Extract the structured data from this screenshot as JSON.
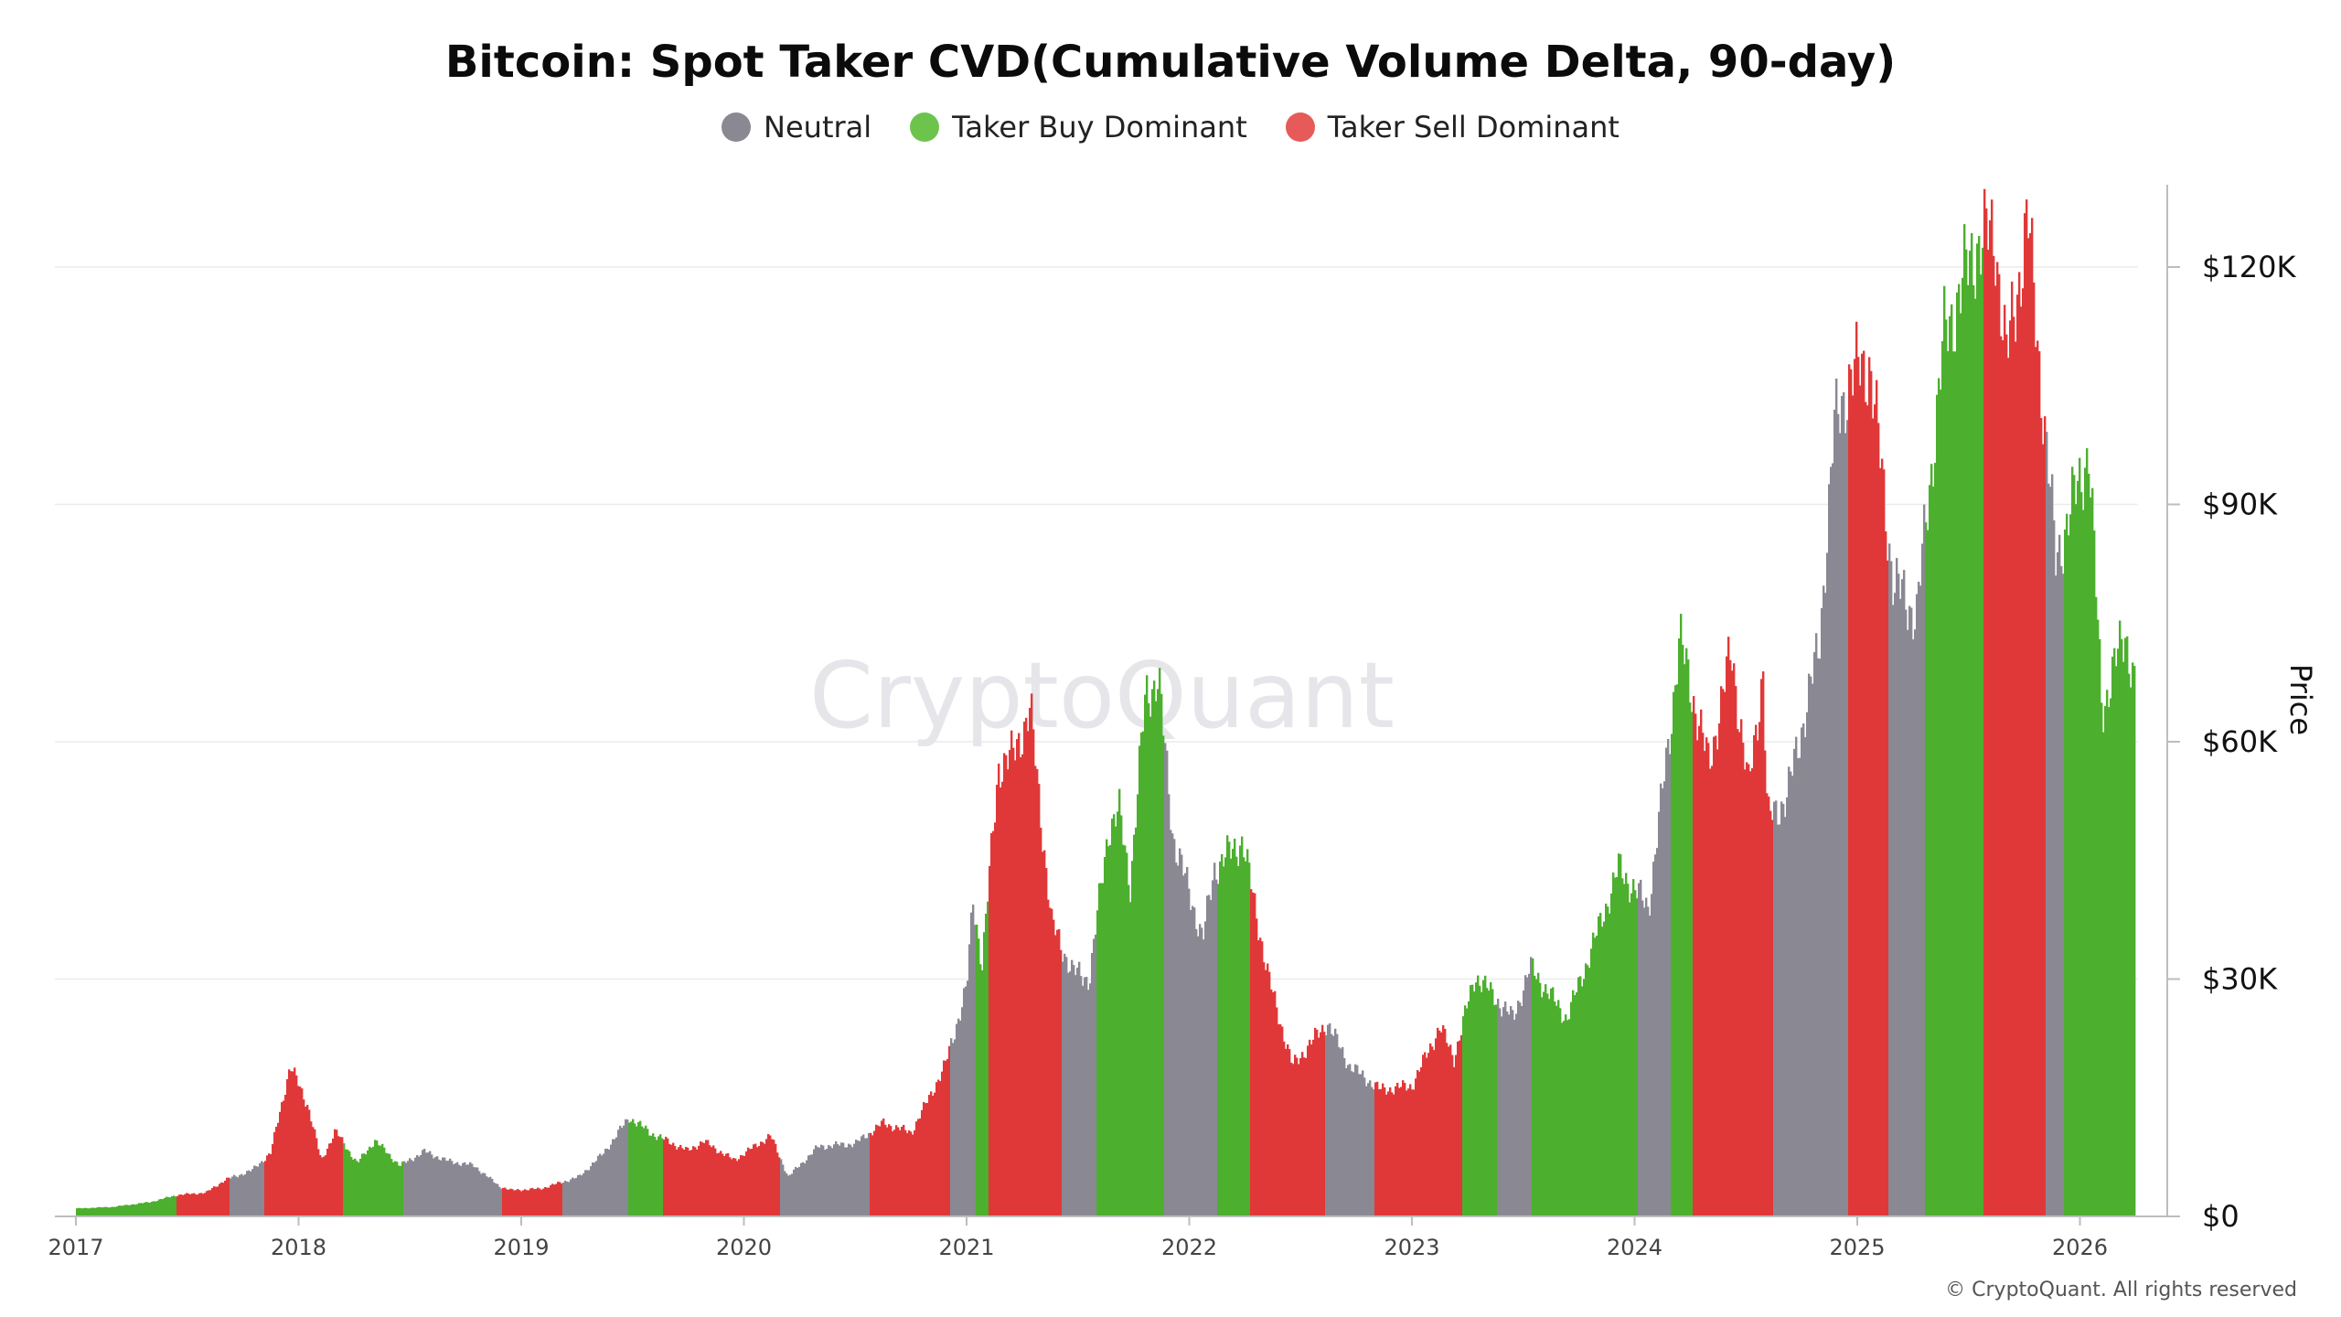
{
  "chart_data": {
    "type": "bar",
    "title": "Bitcoin: Spot Taker CVD(Cumulative Volume Delta, 90-day)",
    "ylabel": "Price",
    "ylim": [
      0,
      130000
    ],
    "y_ticks": [
      "$0",
      "$30K",
      "$60K",
      "$90K",
      "$120K"
    ],
    "y_tick_values": [
      0,
      30000,
      60000,
      90000,
      120000
    ],
    "x_ticks": [
      "2017",
      "2018",
      "2019",
      "2020",
      "2021",
      "2022",
      "2023",
      "2024",
      "2025",
      "2026"
    ],
    "x_range": [
      "2017-01-01",
      "2026-04-01"
    ],
    "grid": true,
    "legend_position": "top",
    "watermark": "CryptoQuant",
    "legend": [
      {
        "name": "Neutral",
        "color": "#8a8893"
      },
      {
        "name": "Taker Buy Dominant",
        "color": "#4caf2e"
      },
      {
        "name": "Taker Sell Dominant",
        "color": "#e03838"
      }
    ],
    "price_points": [
      [
        "2017-01-01",
        1000
      ],
      [
        "2017-03-01",
        1200
      ],
      [
        "2017-05-01",
        1800
      ],
      [
        "2017-06-15",
        2700
      ],
      [
        "2017-08-01",
        3000
      ],
      [
        "2017-09-01",
        4600
      ],
      [
        "2017-10-15",
        5800
      ],
      [
        "2017-11-15",
        8000
      ],
      [
        "2017-12-17",
        19000
      ],
      [
        "2018-01-15",
        14000
      ],
      [
        "2018-02-06",
        7000
      ],
      [
        "2018-03-01",
        10800
      ],
      [
        "2018-04-06",
        6700
      ],
      [
        "2018-05-05",
        9600
      ],
      [
        "2018-06-15",
        6400
      ],
      [
        "2018-07-25",
        8200
      ],
      [
        "2018-09-01",
        7000
      ],
      [
        "2018-10-15",
        6400
      ],
      [
        "2018-11-25",
        3800
      ],
      [
        "2018-12-15",
        3300
      ],
      [
        "2019-02-01",
        3500
      ],
      [
        "2019-04-05",
        5000
      ],
      [
        "2019-05-15",
        8000
      ],
      [
        "2019-06-26",
        12500
      ],
      [
        "2019-08-01",
        10500
      ],
      [
        "2019-09-30",
        8300
      ],
      [
        "2019-10-26",
        9500
      ],
      [
        "2019-12-15",
        7100
      ],
      [
        "2020-02-13",
        10200
      ],
      [
        "2020-03-13",
        5000
      ],
      [
        "2020-05-01",
        8800
      ],
      [
        "2020-07-01",
        9200
      ],
      [
        "2020-08-15",
        11800
      ],
      [
        "2020-10-01",
        10600
      ],
      [
        "2020-11-25",
        19000
      ],
      [
        "2020-12-31",
        29000
      ],
      [
        "2021-01-10",
        40000
      ],
      [
        "2021-01-25",
        32000
      ],
      [
        "2021-02-21",
        57000
      ],
      [
        "2021-03-15",
        58000
      ],
      [
        "2021-04-14",
        64000
      ],
      [
        "2021-05-19",
        37000
      ],
      [
        "2021-06-22",
        31000
      ],
      [
        "2021-07-20",
        30000
      ],
      [
        "2021-08-20",
        49000
      ],
      [
        "2021-09-07",
        51000
      ],
      [
        "2021-09-25",
        42000
      ],
      [
        "2021-10-20",
        66000
      ],
      [
        "2021-11-10",
        68000
      ],
      [
        "2021-12-04",
        48000
      ],
      [
        "2022-01-22",
        35000
      ],
      [
        "2022-02-10",
        44000
      ],
      [
        "2022-03-28",
        47500
      ],
      [
        "2022-05-10",
        30000
      ],
      [
        "2022-06-18",
        19000
      ],
      [
        "2022-08-14",
        24500
      ],
      [
        "2022-09-20",
        19000
      ],
      [
        "2022-11-09",
        16000
      ],
      [
        "2022-12-31",
        16500
      ],
      [
        "2023-02-15",
        24000
      ],
      [
        "2023-03-10",
        20000
      ],
      [
        "2023-04-14",
        30500
      ],
      [
        "2023-06-15",
        25000
      ],
      [
        "2023-07-13",
        31500
      ],
      [
        "2023-09-11",
        25000
      ],
      [
        "2023-10-25",
        34500
      ],
      [
        "2023-12-05",
        44000
      ],
      [
        "2024-01-23",
        39000
      ],
      [
        "2024-02-28",
        62000
      ],
      [
        "2024-03-14",
        73000
      ],
      [
        "2024-05-01",
        57000
      ],
      [
        "2024-06-07",
        71500
      ],
      [
        "2024-07-05",
        54000
      ],
      [
        "2024-07-29",
        69000
      ],
      [
        "2024-08-05",
        50000
      ],
      [
        "2024-09-06",
        53000
      ],
      [
        "2024-10-29",
        72000
      ],
      [
        "2024-11-22",
        99000
      ],
      [
        "2024-12-17",
        106000
      ],
      [
        "2025-01-20",
        108000
      ],
      [
        "2025-02-28",
        80000
      ],
      [
        "2025-04-07",
        76000
      ],
      [
        "2025-05-22",
        111000
      ],
      [
        "2025-07-14",
        123000
      ],
      [
        "2025-08-14",
        124000
      ],
      [
        "2025-09-01",
        108000
      ],
      [
        "2025-10-06",
        126000
      ],
      [
        "2025-11-21",
        83000
      ],
      [
        "2025-12-15",
        89000
      ],
      [
        "2026-01-14",
        97000
      ],
      [
        "2026-02-05",
        64000
      ],
      [
        "2026-03-15",
        74000
      ],
      [
        "2026-03-31",
        67000
      ]
    ],
    "regimes": [
      [
        "2017-01-01",
        "2017-06-15",
        "Taker Buy Dominant"
      ],
      [
        "2017-06-15",
        "2017-09-10",
        "Taker Sell Dominant"
      ],
      [
        "2017-09-10",
        "2017-11-05",
        "Neutral"
      ],
      [
        "2017-11-05",
        "2018-03-15",
        "Taker Sell Dominant"
      ],
      [
        "2018-03-15",
        "2018-06-20",
        "Taker Buy Dominant"
      ],
      [
        "2018-06-20",
        "2018-12-01",
        "Neutral"
      ],
      [
        "2018-12-01",
        "2019-03-10",
        "Taker Sell Dominant"
      ],
      [
        "2019-03-10",
        "2019-06-26",
        "Neutral"
      ],
      [
        "2019-06-26",
        "2019-08-20",
        "Taker Buy Dominant"
      ],
      [
        "2019-08-20",
        "2020-03-01",
        "Taker Sell Dominant"
      ],
      [
        "2020-03-01",
        "2020-07-25",
        "Neutral"
      ],
      [
        "2020-07-25",
        "2020-12-05",
        "Taker Sell Dominant"
      ],
      [
        "2020-12-05",
        "2021-01-15",
        "Neutral"
      ],
      [
        "2021-01-15",
        "2021-02-05",
        "Taker Buy Dominant"
      ],
      [
        "2021-02-05",
        "2021-06-05",
        "Taker Sell Dominant"
      ],
      [
        "2021-06-05",
        "2021-08-01",
        "Neutral"
      ],
      [
        "2021-08-01",
        "2021-11-20",
        "Taker Buy Dominant"
      ],
      [
        "2021-11-20",
        "2022-02-15",
        "Neutral"
      ],
      [
        "2022-02-15",
        "2022-04-10",
        "Taker Buy Dominant"
      ],
      [
        "2022-04-10",
        "2022-08-10",
        "Taker Sell Dominant"
      ],
      [
        "2022-08-10",
        "2022-11-01",
        "Neutral"
      ],
      [
        "2022-11-01",
        "2023-03-25",
        "Taker Sell Dominant"
      ],
      [
        "2023-03-25",
        "2023-05-20",
        "Taker Buy Dominant"
      ],
      [
        "2023-05-20",
        "2023-07-15",
        "Neutral"
      ],
      [
        "2023-07-15",
        "2023-09-20",
        "Taker Buy Dominant"
      ],
      [
        "2023-09-20",
        "2024-01-05",
        "Taker Buy Dominant"
      ],
      [
        "2024-01-05",
        "2024-03-01",
        "Neutral"
      ],
      [
        "2024-03-01",
        "2024-04-05",
        "Taker Buy Dominant"
      ],
      [
        "2024-04-05",
        "2024-08-15",
        "Taker Sell Dominant"
      ],
      [
        "2024-08-15",
        "2024-12-15",
        "Neutral"
      ],
      [
        "2024-12-15",
        "2025-02-20",
        "Taker Sell Dominant"
      ],
      [
        "2025-02-20",
        "2025-04-20",
        "Neutral"
      ],
      [
        "2025-04-20",
        "2025-07-25",
        "Taker Buy Dominant"
      ],
      [
        "2025-07-25",
        "2025-11-05",
        "Taker Sell Dominant"
      ],
      [
        "2025-11-05",
        "2025-12-05",
        "Neutral"
      ],
      [
        "2025-12-05",
        "2026-03-31",
        "Taker Buy Dominant"
      ]
    ]
  },
  "copyright": "© CryptoQuant. All rights reserved"
}
